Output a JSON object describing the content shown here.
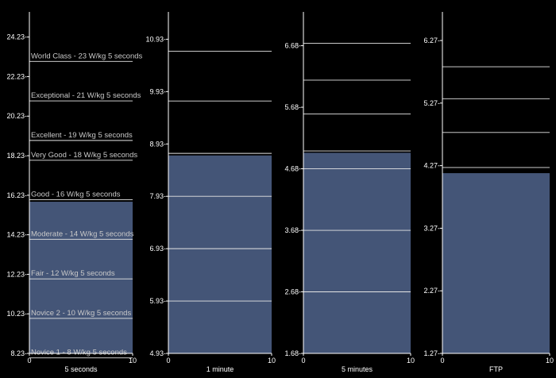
{
  "colors": {
    "background": "#000000",
    "bar_fill": "#445577",
    "level_line": "#e6e6e6",
    "axis": "#ffffff",
    "label": "#c9c9c9"
  },
  "chart_data": [
    {
      "type": "bar",
      "xlabel": "5 seconds",
      "xlim": [
        0,
        10
      ],
      "x_ticks": [
        "0",
        "10"
      ],
      "ylim": [
        8.23,
        25.1
      ],
      "y_ticks": [
        "8.23",
        "10.23",
        "12.23",
        "14.23",
        "16.23",
        "18.23",
        "20.23",
        "22.23",
        "24.23"
      ],
      "value": 15.9,
      "levels": [
        {
          "label": "Novice 1 - 8 W/kg 5 seconds",
          "value": 8
        },
        {
          "label": "Novice 2 - 10 W/kg 5 seconds",
          "value": 10
        },
        {
          "label": "Fair - 12 W/kg 5 seconds",
          "value": 12
        },
        {
          "label": "Moderate - 14 W/kg 5 seconds",
          "value": 14
        },
        {
          "label": "Good - 16 W/kg 5 seconds",
          "value": 16
        },
        {
          "label": "Very Good - 18 W/kg 5 seconds",
          "value": 18
        },
        {
          "label": "Excellent - 19 W/kg 5 seconds",
          "value": 19
        },
        {
          "label": "Exceptional - 21 W/kg 5 seconds",
          "value": 21
        },
        {
          "label": "World Class - 23 W/kg 5 seconds",
          "value": 23
        }
      ]
    },
    {
      "type": "bar",
      "xlabel": "1 minute",
      "xlim": [
        0,
        10
      ],
      "x_ticks": [
        "0",
        "10"
      ],
      "ylim": [
        4.93,
        11.3
      ],
      "y_ticks": [
        "4.93",
        "5.93",
        "6.93",
        "7.93",
        "8.93",
        "9.93",
        "10.93"
      ],
      "value": 8.71,
      "levels": [
        {
          "label": "",
          "value": 5.93
        },
        {
          "label": "",
          "value": 6.93
        },
        {
          "label": "",
          "value": 7.93
        },
        {
          "label": "",
          "value": 8.75
        },
        {
          "label": "",
          "value": 9.75
        },
        {
          "label": "",
          "value": 10.7
        }
      ]
    },
    {
      "type": "bar",
      "xlabel": "5 minutes",
      "xlim": [
        0,
        10
      ],
      "x_ticks": [
        "0",
        "10"
      ],
      "ylim": [
        1.68,
        7.1
      ],
      "y_ticks": [
        "1.68",
        "2.68",
        "3.68",
        "4.68",
        "5.68",
        "6.68"
      ],
      "value": 4.94,
      "levels": [
        {
          "label": "",
          "value": 1.68
        },
        {
          "label": "",
          "value": 2.68
        },
        {
          "label": "",
          "value": 3.68
        },
        {
          "label": "",
          "value": 4.68
        },
        {
          "label": "",
          "value": 4.97
        },
        {
          "label": "",
          "value": 5.57
        },
        {
          "label": "",
          "value": 6.12
        },
        {
          "label": "",
          "value": 6.72
        }
      ]
    },
    {
      "type": "bar",
      "xlabel": "FTP",
      "xlim": [
        0,
        10
      ],
      "x_ticks": [
        "0",
        "10"
      ],
      "ylim": [
        1.27,
        6.6
      ],
      "y_ticks": [
        "1.27",
        "2.27",
        "3.27",
        "4.27",
        "5.27",
        "6.27"
      ],
      "value": 4.15,
      "levels": [
        {
          "label": "",
          "value": 1.27
        },
        {
          "label": "",
          "value": 4.24
        },
        {
          "label": "",
          "value": 4.8
        },
        {
          "label": "",
          "value": 5.34
        },
        {
          "label": "",
          "value": 5.85
        }
      ]
    }
  ]
}
